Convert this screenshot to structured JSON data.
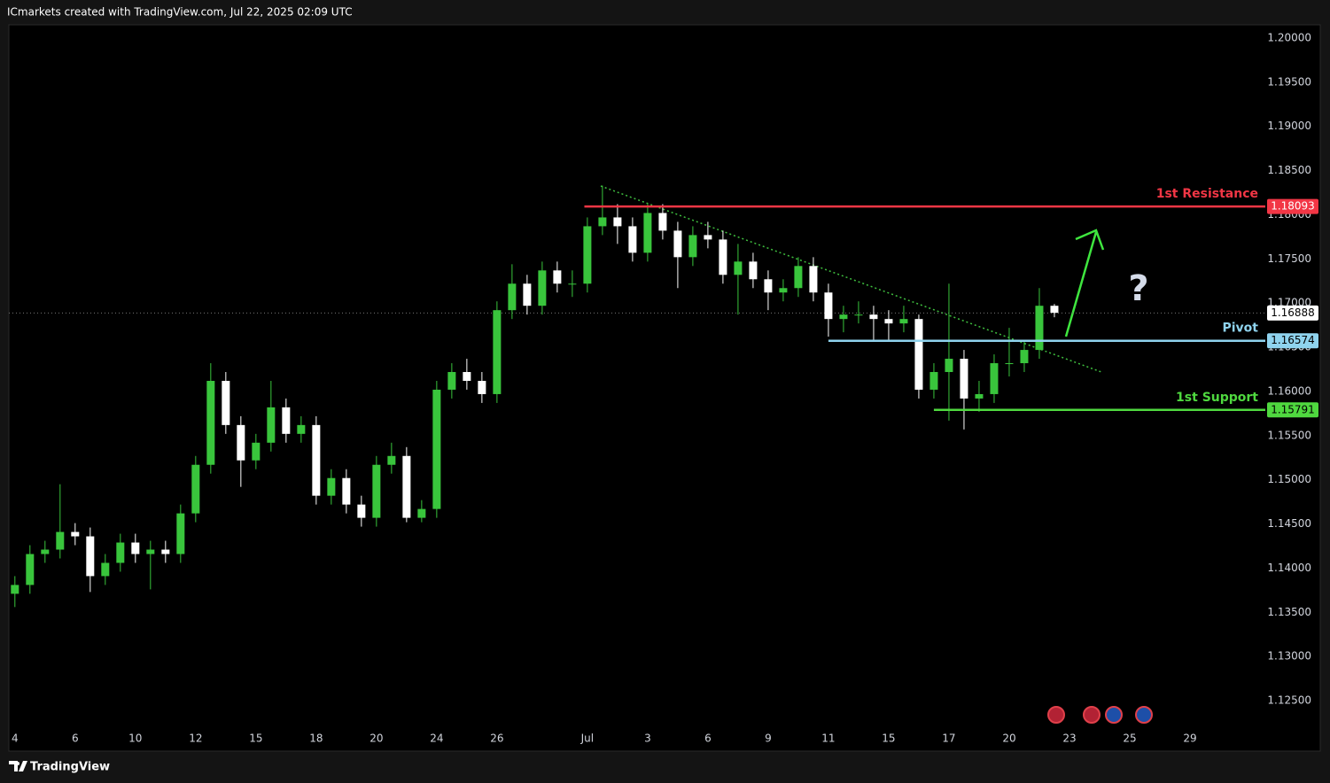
{
  "header": {
    "text": "ICmarkets created with TradingView.com, Jul 22, 2025 02:09 UTC"
  },
  "footer": {
    "brand": "TradingView"
  },
  "chart_data": {
    "type": "candlestick",
    "x": [
      0,
      0.5,
      1,
      1.5,
      2,
      2.5,
      3,
      3.5,
      4,
      4.5,
      5,
      5.5,
      6,
      6.5,
      7,
      7.5,
      8,
      8.5,
      9,
      9.5,
      10,
      10.5,
      11,
      11.5,
      12,
      12.5,
      13,
      13.5,
      14,
      14.5,
      15,
      15.5,
      16,
      16.5,
      17,
      17.5,
      18,
      18.5,
      19,
      19.5,
      20,
      20.5,
      21,
      21.5,
      22,
      22.5,
      23,
      23.5,
      24,
      24.5,
      25,
      25.5,
      26,
      26.5,
      27,
      27.5,
      28,
      28.5,
      29,
      29.5,
      30,
      30.5,
      31,
      31.5,
      32,
      32.5,
      33,
      33.5,
      34,
      34.5
    ],
    "open": [
      1.1371,
      1.1381,
      1.1416,
      1.1421,
      1.1441,
      1.1436,
      1.1391,
      1.1406,
      1.1429,
      1.1416,
      1.1421,
      1.1416,
      1.1462,
      1.1517,
      1.1612,
      1.1562,
      1.1522,
      1.1542,
      1.1582,
      1.1552,
      1.1562,
      1.1482,
      1.1502,
      1.1472,
      1.1457,
      1.1517,
      1.1527,
      1.1457,
      1.1467,
      1.1602,
      1.1622,
      1.1612,
      1.1597,
      1.1692,
      1.1722,
      1.1697,
      1.1737,
      1.1722,
      1.1722,
      1.1787,
      1.1797,
      1.1787,
      1.1757,
      1.1802,
      1.1782,
      1.1752,
      1.1777,
      1.1772,
      1.1732,
      1.1747,
      1.1727,
      1.1712,
      1.1717,
      1.1742,
      1.1712,
      1.1682,
      1.1687,
      1.1687,
      1.1682,
      1.1677,
      1.1682,
      1.1602,
      1.1622,
      1.1637,
      1.1592,
      1.1597,
      1.1632,
      1.1632,
      1.1647,
      1.1697
    ],
    "high": [
      1.1391,
      1.1426,
      1.1431,
      1.1495,
      1.1451,
      1.1446,
      1.1416,
      1.1439,
      1.1439,
      1.1431,
      1.1431,
      1.1472,
      1.1527,
      1.1632,
      1.1622,
      1.1572,
      1.1552,
      1.1612,
      1.1592,
      1.1572,
      1.1572,
      1.1512,
      1.1512,
      1.1482,
      1.1527,
      1.1542,
      1.1537,
      1.1477,
      1.1612,
      1.1632,
      1.1637,
      1.1622,
      1.1702,
      1.1744,
      1.1732,
      1.1747,
      1.1747,
      1.1737,
      1.1797,
      1.1833,
      1.1812,
      1.1797,
      1.1812,
      1.1812,
      1.1792,
      1.1787,
      1.1792,
      1.1782,
      1.1767,
      1.1757,
      1.1737,
      1.1727,
      1.1752,
      1.1752,
      1.1722,
      1.1697,
      1.1702,
      1.1697,
      1.1692,
      1.1697,
      1.1687,
      1.1632,
      1.1722,
      1.1647,
      1.1612,
      1.1642,
      1.1672,
      1.1657,
      1.1717,
      1.1699
    ],
    "low": [
      1.1356,
      1.1371,
      1.1406,
      1.1411,
      1.1426,
      1.1373,
      1.1381,
      1.1396,
      1.1406,
      1.1376,
      1.1406,
      1.1406,
      1.1452,
      1.1507,
      1.1552,
      1.1492,
      1.1512,
      1.1532,
      1.1542,
      1.1542,
      1.1472,
      1.1472,
      1.1462,
      1.1447,
      1.1447,
      1.1507,
      1.1452,
      1.1452,
      1.1457,
      1.1592,
      1.1602,
      1.1587,
      1.1587,
      1.1682,
      1.1687,
      1.1687,
      1.1712,
      1.1707,
      1.1712,
      1.1777,
      1.1767,
      1.1747,
      1.1747,
      1.1772,
      1.1717,
      1.1742,
      1.1762,
      1.1722,
      1.1687,
      1.1717,
      1.1692,
      1.1702,
      1.1707,
      1.1702,
      1.1662,
      1.1667,
      1.1677,
      1.1657,
      1.1657,
      1.1667,
      1.1592,
      1.1592,
      1.1567,
      1.1557,
      1.1577,
      1.1587,
      1.1617,
      1.1622,
      1.1637,
      1.1684
    ],
    "close": [
      1.1381,
      1.1416,
      1.1421,
      1.1441,
      1.1436,
      1.1391,
      1.1406,
      1.1429,
      1.1416,
      1.1421,
      1.1416,
      1.1462,
      1.1517,
      1.1612,
      1.1562,
      1.1522,
      1.1542,
      1.1582,
      1.1552,
      1.1562,
      1.1482,
      1.1502,
      1.1472,
      1.1457,
      1.1517,
      1.1527,
      1.1457,
      1.1467,
      1.1602,
      1.1622,
      1.1612,
      1.1597,
      1.1692,
      1.1722,
      1.1697,
      1.1737,
      1.1722,
      1.1722,
      1.1787,
      1.1797,
      1.1787,
      1.1757,
      1.1802,
      1.1782,
      1.1752,
      1.1777,
      1.1772,
      1.1732,
      1.1747,
      1.1727,
      1.1712,
      1.1717,
      1.1742,
      1.1712,
      1.1682,
      1.1687,
      1.1687,
      1.1682,
      1.1677,
      1.1682,
      1.1602,
      1.1622,
      1.1637,
      1.1592,
      1.1597,
      1.1632,
      1.1632,
      1.1647,
      1.1697,
      1.1689
    ],
    "up_color": "#39c53c",
    "down_color": "#ffffff",
    "xlim": [
      -0.2,
      41.5
    ],
    "ylim": [
      1.1221,
      1.2015
    ],
    "xticks": [
      {
        "value": 0,
        "label": "4"
      },
      {
        "value": 2,
        "label": "6"
      },
      {
        "value": 4,
        "label": "10"
      },
      {
        "value": 6,
        "label": "12"
      },
      {
        "value": 8,
        "label": "15"
      },
      {
        "value": 10,
        "label": "18"
      },
      {
        "value": 12,
        "label": "20"
      },
      {
        "value": 14,
        "label": "24"
      },
      {
        "value": 16,
        "label": "26"
      },
      {
        "value": 19,
        "label": "Jul"
      },
      {
        "value": 21,
        "label": "3"
      },
      {
        "value": 23,
        "label": "6"
      },
      {
        "value": 25,
        "label": "9"
      },
      {
        "value": 27,
        "label": "11"
      },
      {
        "value": 29,
        "label": "15"
      },
      {
        "value": 31,
        "label": "17"
      },
      {
        "value": 33,
        "label": "20"
      },
      {
        "value": 35,
        "label": "23"
      },
      {
        "value": 37,
        "label": "25"
      },
      {
        "value": 39,
        "label": "29"
      }
    ],
    "yticks": [
      {
        "value": 1.125,
        "label": "1.12500"
      },
      {
        "value": 1.13,
        "label": "1.13000"
      },
      {
        "value": 1.135,
        "label": "1.13500"
      },
      {
        "value": 1.14,
        "label": "1.14000"
      },
      {
        "value": 1.145,
        "label": "1.14500"
      },
      {
        "value": 1.15,
        "label": "1.15000"
      },
      {
        "value": 1.155,
        "label": "1.15500"
      },
      {
        "value": 1.16,
        "label": "1.16000"
      },
      {
        "value": 1.165,
        "label": "1.16500"
      },
      {
        "value": 1.17,
        "label": "1.17000"
      },
      {
        "value": 1.175,
        "label": "1.17500"
      },
      {
        "value": 1.18,
        "label": "1.18000"
      },
      {
        "value": 1.185,
        "label": "1.18500"
      },
      {
        "value": 1.19,
        "label": "1.19000"
      },
      {
        "value": 1.195,
        "label": "1.19500"
      },
      {
        "value": 1.2,
        "label": "1.20000"
      }
    ],
    "grid": false,
    "levels": [
      {
        "name": "1st Resistance",
        "value": 1.18093,
        "x_from": 18.9,
        "color": "#f23645",
        "text_color": "#ffffff"
      },
      {
        "name": "Pivot",
        "value": 1.16574,
        "x_from": 27.0,
        "color": "#8fd3ee",
        "text_color": "#000000"
      },
      {
        "name": "1st Support",
        "value": 1.15791,
        "x_from": 30.5,
        "color": "#4fd83f",
        "text_color": "#000000"
      }
    ],
    "last_price": 1.16888,
    "annotation": "?"
  }
}
